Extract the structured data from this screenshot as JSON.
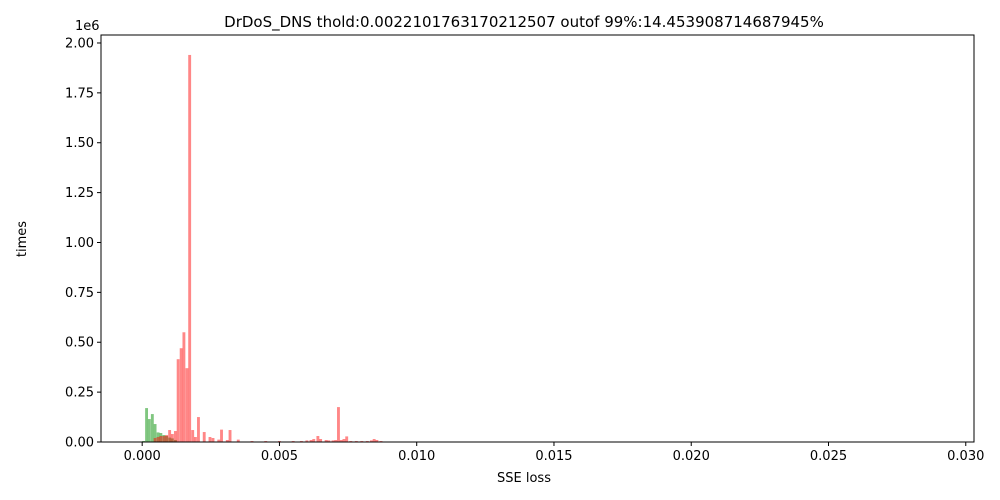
{
  "chart_data": {
    "type": "bar",
    "title": "DrDoS_DNS thold:0.0022101763170212507 outof 99%:14.453908714687945%",
    "xlabel": "SSE loss",
    "ylabel": "times",
    "y_multiplier": "1e6",
    "xlim": [
      -0.0015,
      0.0303
    ],
    "ylim": [
      0,
      2040000
    ],
    "x_ticks": [
      0.0,
      0.005,
      0.01,
      0.015,
      0.02,
      0.025,
      0.03
    ],
    "x_tick_labels": [
      "0.000",
      "0.005",
      "0.010",
      "0.015",
      "0.020",
      "0.025",
      "0.030"
    ],
    "y_ticks": [
      0,
      250000,
      500000,
      750000,
      1000000,
      1250000,
      1500000,
      1750000,
      2000000
    ],
    "y_tick_labels": [
      "0.00",
      "0.25",
      "0.50",
      "0.75",
      "1.00",
      "1.25",
      "1.50",
      "1.75",
      "2.00"
    ],
    "bin_width": 0.000105,
    "series": [
      {
        "color": "#2ca02c",
        "opacity": 0.6,
        "x": [
          5e-05,
          0.00016,
          0.00026,
          0.00037,
          0.00047,
          0.00058,
          0.00068,
          0.00079,
          0.00089,
          0.001,
          0.0011,
          0.00121
        ],
        "values": [
          5000,
          170000,
          115000,
          140000,
          90000,
          48000,
          45000,
          35000,
          30000,
          22000,
          18000,
          10000
        ]
      },
      {
        "color": "#ff0000",
        "opacity": 0.47,
        "x": [
          0.00047,
          0.00058,
          0.00068,
          0.00079,
          0.00089,
          0.001,
          0.0011,
          0.00121,
          0.00131,
          0.00142,
          0.00152,
          0.00163,
          0.00173,
          0.00184,
          0.00194,
          0.00205,
          0.00226,
          0.00247,
          0.00258,
          0.00279,
          0.00289,
          0.0031,
          0.0032,
          0.0035,
          0.004,
          0.0045,
          0.005,
          0.0055,
          0.0058,
          0.006,
          0.00615,
          0.00625,
          0.0064,
          0.0065,
          0.0067,
          0.0068,
          0.00695,
          0.00705,
          0.00715,
          0.00725,
          0.00735,
          0.00745,
          0.0076,
          0.0078,
          0.008,
          0.0082,
          0.00835,
          0.00845,
          0.00855,
          0.0087
        ],
        "values": [
          20000,
          25000,
          30000,
          30000,
          35000,
          60000,
          40000,
          55000,
          415000,
          470000,
          550000,
          370000,
          1940000,
          60000,
          25000,
          125000,
          50000,
          25000,
          20000,
          12000,
          62000,
          10000,
          60000,
          12000,
          5000,
          5000,
          5000,
          5000,
          5000,
          8000,
          10000,
          15000,
          30000,
          15000,
          10000,
          8000,
          8000,
          10000,
          175000,
          10000,
          15000,
          28000,
          5000,
          5000,
          5000,
          5000,
          8000,
          15000,
          10000,
          5000
        ]
      }
    ],
    "grid": false,
    "legend": "none"
  }
}
